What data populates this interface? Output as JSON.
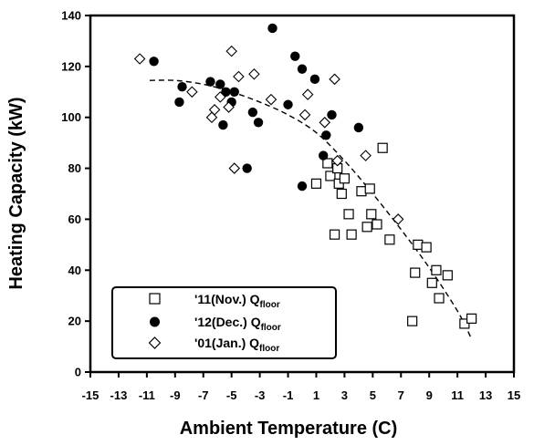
{
  "chart_data": {
    "type": "scatter",
    "title": "",
    "xlabel": "Ambient Temperature (C)",
    "ylabel": "Heating Capacity (kW)",
    "xlim": [
      -15,
      15
    ],
    "ylim": [
      0,
      140
    ],
    "xticks": [
      -15,
      -13,
      -11,
      -9,
      -7,
      -5,
      -3,
      -1,
      1,
      3,
      5,
      7,
      9,
      11,
      13,
      15
    ],
    "yticks": [
      0,
      20,
      40,
      60,
      80,
      100,
      120,
      140
    ],
    "grid": false,
    "legend_position": "bottom-left",
    "series": [
      {
        "name": "'11(Nov.) Q",
        "name_sub": "floor",
        "marker": "open-square",
        "points": [
          [
            1.0,
            74
          ],
          [
            1.8,
            82
          ],
          [
            2.0,
            77
          ],
          [
            2.3,
            54
          ],
          [
            2.5,
            80
          ],
          [
            2.6,
            74
          ],
          [
            2.8,
            70
          ],
          [
            3.0,
            76
          ],
          [
            3.3,
            62
          ],
          [
            3.5,
            54
          ],
          [
            4.2,
            71
          ],
          [
            4.6,
            57
          ],
          [
            4.8,
            72
          ],
          [
            4.9,
            62
          ],
          [
            5.3,
            58
          ],
          [
            5.7,
            88
          ],
          [
            6.2,
            52
          ],
          [
            7.8,
            20
          ],
          [
            8.0,
            39
          ],
          [
            8.2,
            50
          ],
          [
            8.8,
            49
          ],
          [
            9.2,
            35
          ],
          [
            9.5,
            40
          ],
          [
            9.7,
            29
          ],
          [
            10.3,
            38
          ],
          [
            11.5,
            19
          ],
          [
            12.0,
            21
          ]
        ]
      },
      {
        "name": "'12(Dec.) Q",
        "name_sub": "floor",
        "marker": "filled-circle",
        "points": [
          [
            -10.5,
            122
          ],
          [
            -8.5,
            112
          ],
          [
            -8.7,
            106
          ],
          [
            -6.5,
            114
          ],
          [
            -5.8,
            113
          ],
          [
            -5.6,
            97
          ],
          [
            -5.4,
            110
          ],
          [
            -5.0,
            106
          ],
          [
            -4.8,
            110
          ],
          [
            -3.5,
            102
          ],
          [
            -3.9,
            80
          ],
          [
            -3.1,
            98
          ],
          [
            -2.1,
            135
          ],
          [
            -1.0,
            105
          ],
          [
            -0.5,
            124
          ],
          [
            0.0,
            119
          ],
          [
            0.0,
            73
          ],
          [
            0.9,
            115
          ],
          [
            1.5,
            85
          ],
          [
            1.7,
            93
          ],
          [
            2.1,
            101
          ],
          [
            4.0,
            96
          ]
        ]
      },
      {
        "name": "'01(Jan.) Q",
        "name_sub": "floor",
        "marker": "open-diamond",
        "points": [
          [
            -11.5,
            123
          ],
          [
            -7.8,
            110
          ],
          [
            -6.4,
            100
          ],
          [
            -6.2,
            103
          ],
          [
            -5.8,
            108
          ],
          [
            -5.2,
            104
          ],
          [
            -5.0,
            126
          ],
          [
            -4.8,
            80
          ],
          [
            -4.5,
            116
          ],
          [
            -3.4,
            117
          ],
          [
            -2.2,
            107
          ],
          [
            0.2,
            101
          ],
          [
            0.4,
            109
          ],
          [
            1.6,
            98
          ],
          [
            2.3,
            115
          ],
          [
            2.5,
            83
          ],
          [
            4.5,
            85
          ],
          [
            6.8,
            60
          ]
        ]
      }
    ],
    "trendline": {
      "style": "dashed",
      "points": [
        [
          -10.8,
          114.5
        ],
        [
          -9,
          114.5
        ],
        [
          -7,
          113
        ],
        [
          -5,
          110
        ],
        [
          -3,
          106
        ],
        [
          -1,
          101
        ],
        [
          1,
          94
        ],
        [
          3,
          83
        ],
        [
          5,
          70
        ],
        [
          7,
          56
        ],
        [
          9,
          41
        ],
        [
          11,
          24
        ],
        [
          12,
          13
        ]
      ]
    }
  }
}
